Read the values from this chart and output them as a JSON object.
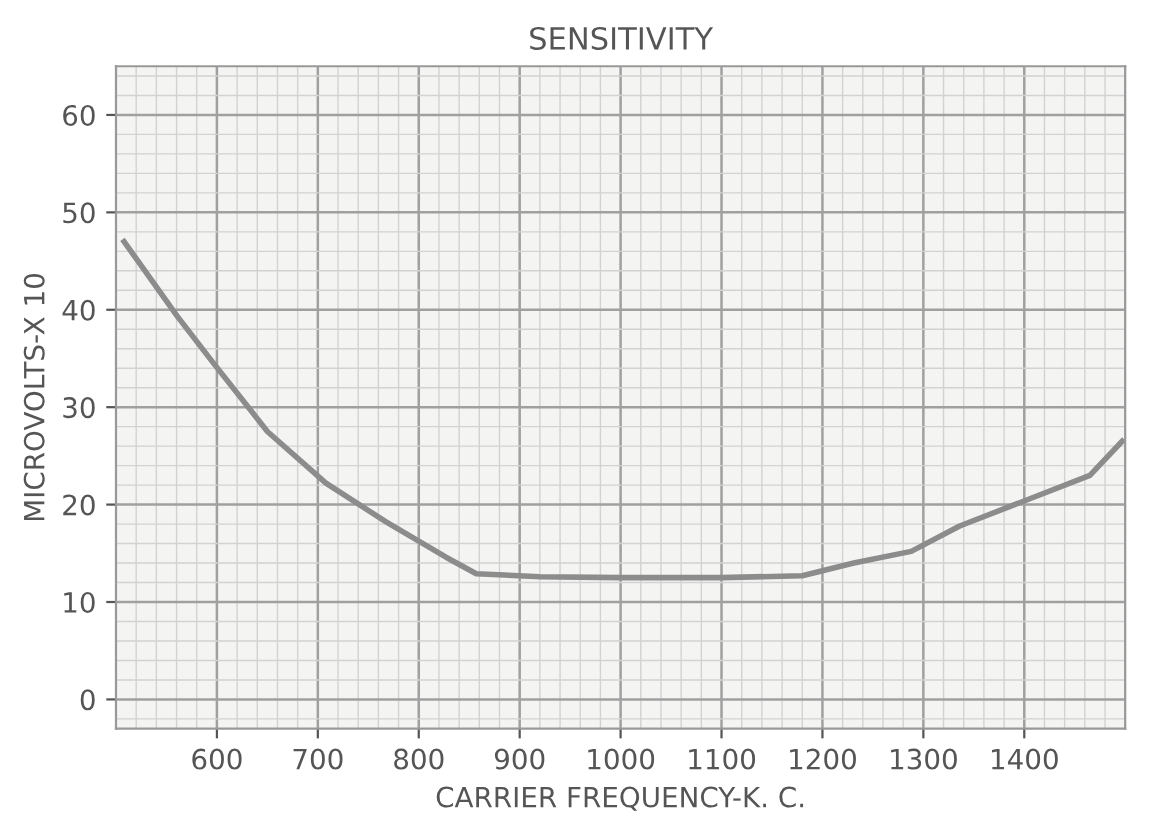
{
  "chart_data": {
    "type": "line",
    "title": "SENSITIVITY",
    "xlabel": "CARRIER FREQUENCY-K. C.",
    "ylabel": "MICROVOLTS-X 10",
    "x": [
      508,
      561,
      596,
      650,
      708,
      768,
      827,
      857,
      920,
      1000,
      1100,
      1180,
      1231,
      1288,
      1336,
      1403,
      1465,
      1497
    ],
    "series": [
      {
        "color": "#8c8c8c",
        "values": [
          47,
          39.3,
          34.6,
          27.5,
          22.2,
          18.2,
          14.6,
          12.9,
          12.6,
          12.5,
          12.5,
          12.7,
          14,
          15.2,
          17.8,
          20.5,
          23,
          26.5
        ]
      }
    ],
    "xlim": [
      500,
      1500
    ],
    "xticks": [
      600,
      700,
      800,
      900,
      1000,
      1100,
      1200,
      1300,
      1400
    ],
    "ylim": [
      -3,
      65
    ],
    "yticks": [
      0,
      10,
      20,
      30,
      40,
      50,
      60
    ],
    "grid": true,
    "marker": "none",
    "line_style": "solid"
  }
}
